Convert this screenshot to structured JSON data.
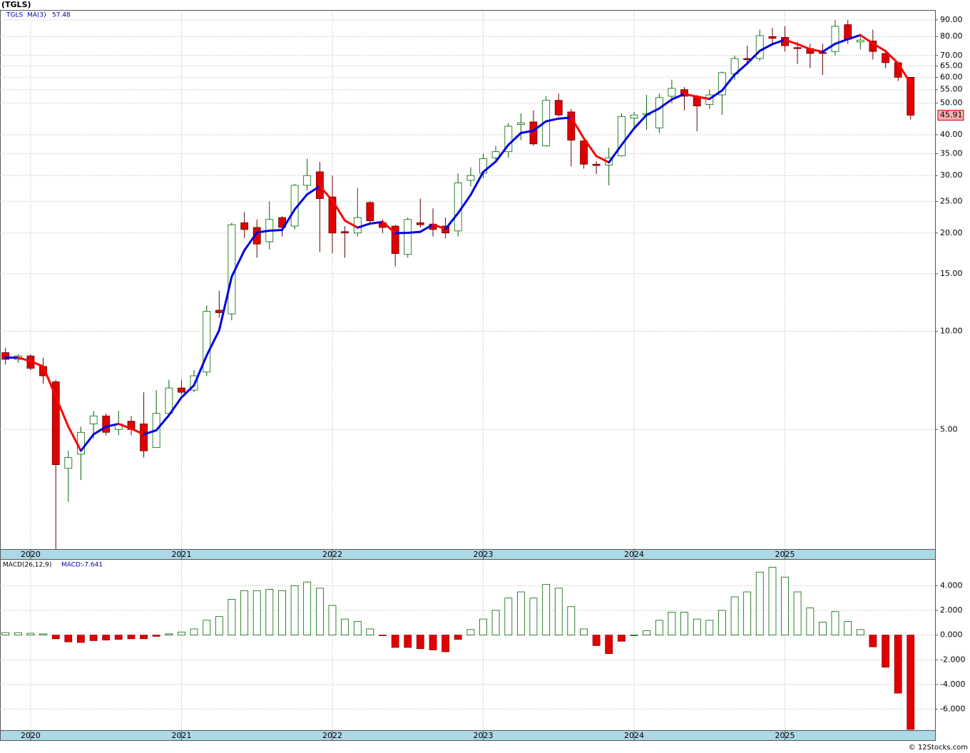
{
  "chart_data": [
    {
      "type": "candlestick",
      "title": "(TGLS)",
      "log_scale": true,
      "grid": true,
      "up_color": "#006400",
      "down_color": "#e00000",
      "x": [
        2019.833,
        2019.917,
        2020,
        2020.083,
        2020.167,
        2020.25,
        2020.333,
        2020.417,
        2020.5,
        2020.583,
        2020.667,
        2020.75,
        2020.833,
        2020.917,
        2021,
        2021.083,
        2021.167,
        2021.25,
        2021.333,
        2021.417,
        2021.5,
        2021.583,
        2021.667,
        2021.75,
        2021.833,
        2021.917,
        2022,
        2022.083,
        2022.167,
        2022.25,
        2022.333,
        2022.417,
        2022.5,
        2022.583,
        2022.667,
        2022.75,
        2022.833,
        2022.917,
        2023,
        2023.083,
        2023.167,
        2023.25,
        2023.333,
        2023.417,
        2023.5,
        2023.583,
        2023.667,
        2023.75,
        2023.833,
        2023.917,
        2024,
        2024.083,
        2024.167,
        2024.25,
        2024.333,
        2024.417,
        2024.5,
        2024.583,
        2024.667,
        2024.75,
        2024.833,
        2024.917,
        2025,
        2025.083,
        2025.167,
        2025.25,
        2025.333,
        2025.417,
        2025.5,
        2025.583,
        2025.667,
        2025.75,
        2025.833
      ],
      "series": [
        {
          "name": "TGLS",
          "open": [
            8.6,
            8.2,
            8.4,
            7.8,
            7.0,
            3.8,
            4.2,
            5.2,
            5.5,
            5.0,
            5.3,
            5.2,
            4.4,
            5.6,
            6.7,
            6.6,
            7.5,
            11.6,
            11.3,
            21.5,
            20.8,
            18.8,
            22.3,
            21.0,
            28.0,
            30.8,
            25.8,
            20.2,
            20.0,
            24.8,
            21.5,
            21.0,
            17.2,
            21.5,
            21.3,
            21.0,
            20.3,
            29.0,
            30.5,
            34.0,
            35.5,
            43.0,
            43.8,
            37.0,
            51.0,
            47.0,
            38.3,
            32.5,
            32.3,
            34.5,
            45.0,
            46.0,
            42.0,
            52.5,
            55.0,
            52.5,
            49.5,
            53.0,
            61.5,
            68.5,
            68.5,
            80.0,
            79.5,
            74.0,
            73.5,
            71.5,
            72.0,
            87.0,
            77.0,
            77.5,
            71.0,
            66.5,
            60.0
          ],
          "high": [
            8.9,
            8.5,
            8.5,
            8.3,
            7.1,
            4.3,
            5.1,
            5.7,
            5.6,
            5.7,
            5.5,
            6.5,
            6.6,
            7.1,
            7.1,
            7.6,
            12.0,
            13.3,
            21.5,
            23.2,
            22.0,
            25.0,
            22.5,
            28.3,
            33.8,
            33.0,
            30.0,
            21.0,
            27.5,
            25.0,
            22.0,
            21.2,
            22.3,
            25.5,
            23.8,
            22.3,
            30.5,
            31.8,
            35.0,
            37.0,
            43.5,
            46.5,
            47.5,
            52.5,
            53.5,
            48.0,
            38.5,
            33.2,
            36.5,
            46.5,
            47.0,
            53.0,
            53.5,
            59.0,
            56.0,
            53.0,
            55.0,
            62.5,
            70.0,
            75.0,
            84.0,
            85.0,
            86.0,
            77.0,
            76.0,
            76.0,
            90.0,
            90.0,
            80.0,
            84.0,
            72.0,
            67.0,
            60.0
          ],
          "low": [
            7.9,
            8.0,
            7.6,
            6.9,
            2.15,
            3.0,
            3.5,
            4.7,
            4.8,
            4.8,
            4.8,
            4.1,
            4.4,
            5.5,
            6.4,
            6.5,
            7.3,
            11.0,
            10.8,
            19.3,
            16.8,
            17.8,
            19.5,
            20.5,
            27.0,
            17.5,
            17.3,
            16.8,
            19.5,
            21.3,
            20.0,
            15.8,
            16.8,
            20.8,
            19.5,
            19.3,
            19.5,
            27.8,
            29.5,
            33.0,
            34.0,
            38.5,
            37.0,
            36.8,
            45.5,
            32.0,
            31.5,
            30.3,
            28.0,
            34.3,
            42.0,
            41.5,
            40.5,
            50.0,
            47.5,
            41.0,
            48.0,
            46.0,
            59.0,
            66.0,
            67.5,
            75.0,
            72.0,
            66.0,
            64.0,
            61.0,
            70.0,
            76.0,
            73.0,
            68.0,
            64.0,
            58.5,
            44.5
          ],
          "close": [
            8.2,
            8.4,
            7.7,
            7.3,
            3.9,
            4.1,
            4.9,
            5.5,
            4.9,
            5.2,
            5.0,
            4.3,
            5.6,
            6.7,
            6.5,
            7.3,
            11.5,
            11.4,
            21.2,
            20.5,
            18.5,
            22.0,
            20.8,
            28.0,
            30.0,
            25.5,
            20.0,
            20.0,
            22.3,
            21.8,
            20.8,
            17.3,
            22.0,
            21.2,
            20.5,
            20.0,
            28.5,
            30.0,
            33.8,
            35.5,
            42.5,
            43.5,
            37.5,
            51.0,
            46.0,
            38.5,
            32.5,
            32.2,
            34.0,
            45.5,
            46.0,
            46.5,
            52.0,
            55.5,
            52.5,
            49.0,
            53.0,
            62.0,
            68.5,
            68.0,
            80.5,
            79.0,
            75.0,
            73.5,
            71.0,
            71.0,
            86.0,
            78.5,
            78.0,
            72.0,
            66.52,
            60.0,
            45.91
          ],
          "value_labels": {
            "close_last": "45.91"
          }
        },
        {
          "name": "MA(3)",
          "up_color": "#0000e0",
          "down_color": "#ff0000",
          "values": [
            8.3,
            8.3,
            8.1,
            7.8,
            6.3,
            5.1,
            4.3,
            4.83,
            5.1,
            5.2,
            5.03,
            4.83,
            4.97,
            5.53,
            6.27,
            6.83,
            8.43,
            10.07,
            14.7,
            17.7,
            20.07,
            20.33,
            20.43,
            23.6,
            26.27,
            27.83,
            25.17,
            21.83,
            20.77,
            21.37,
            21.63,
            19.97,
            20.03,
            20.17,
            21.23,
            20.57,
            23.0,
            26.17,
            30.77,
            33.1,
            37.27,
            40.5,
            41.17,
            44.0,
            44.83,
            45.17,
            39.0,
            34.4,
            32.9,
            37.23,
            41.83,
            46.0,
            48.17,
            51.33,
            53.33,
            52.33,
            51.5,
            54.67,
            61.17,
            66.17,
            72.33,
            75.83,
            78.17,
            75.83,
            73.17,
            71.83,
            76.0,
            78.5,
            80.83,
            76.17,
            72.17,
            66.17,
            57.48
          ]
        }
      ],
      "xlim": [
        2019.797,
        2025.995
      ],
      "xticks": [
        2020,
        2021,
        2022,
        2023,
        2024,
        2025
      ],
      "ylim": [
        2.15,
        96
      ],
      "yticks": [
        {
          "value": 5,
          "label": "5.00"
        },
        {
          "value": 10,
          "label": "10.00"
        },
        {
          "value": 15,
          "label": "15.00"
        },
        {
          "value": 20,
          "label": "20.00"
        },
        {
          "value": 25,
          "label": "25.00"
        },
        {
          "value": 30,
          "label": "30.00"
        },
        {
          "value": 35,
          "label": "35.00"
        },
        {
          "value": 40,
          "label": "40.00"
        },
        {
          "value": 50,
          "label": "50.00"
        },
        {
          "value": 55,
          "label": "55.00"
        },
        {
          "value": 60,
          "label": "60.00"
        },
        {
          "value": 65,
          "label": "65.00"
        },
        {
          "value": 70,
          "label": "70.00"
        },
        {
          "value": 80,
          "label": "80.00"
        },
        {
          "value": 90,
          "label": "90.00"
        }
      ]
    },
    {
      "type": "histogram_macd",
      "title": "MACD(26,12,9)",
      "legend_label": "MACD:",
      "grid": true,
      "up_color": "#006400",
      "down_color": "#e00000",
      "x": [
        2019.833,
        2019.917,
        2020,
        2020.083,
        2020.167,
        2020.25,
        2020.333,
        2020.417,
        2020.5,
        2020.583,
        2020.667,
        2020.75,
        2020.833,
        2020.917,
        2021,
        2021.083,
        2021.167,
        2021.25,
        2021.333,
        2021.417,
        2021.5,
        2021.583,
        2021.667,
        2021.75,
        2021.833,
        2021.917,
        2022,
        2022.083,
        2022.167,
        2022.25,
        2022.333,
        2022.417,
        2022.5,
        2022.583,
        2022.667,
        2022.75,
        2022.833,
        2022.917,
        2023,
        2023.083,
        2023.167,
        2023.25,
        2023.333,
        2023.417,
        2023.5,
        2023.583,
        2023.667,
        2023.75,
        2023.833,
        2023.917,
        2024,
        2024.083,
        2024.167,
        2024.25,
        2024.333,
        2024.417,
        2024.5,
        2024.583,
        2024.667,
        2024.75,
        2024.833,
        2024.917,
        2025,
        2025.083,
        2025.167,
        2025.25,
        2025.333,
        2025.417,
        2025.5,
        2025.583,
        2025.667,
        2025.75,
        2025.833
      ],
      "values": [
        0.2,
        0.2,
        0.15,
        0.1,
        -0.3,
        -0.55,
        -0.6,
        -0.45,
        -0.4,
        -0.35,
        -0.3,
        -0.3,
        -0.1,
        0.1,
        0.25,
        0.5,
        1.2,
        1.5,
        2.9,
        3.6,
        3.6,
        3.7,
        3.6,
        4.0,
        4.3,
        3.8,
        2.4,
        1.3,
        1.1,
        0.5,
        -0.05,
        -1.0,
        -1.0,
        -1.1,
        -1.2,
        -1.35,
        -0.35,
        0.45,
        1.3,
        2.0,
        3.0,
        3.5,
        3.0,
        4.1,
        3.8,
        2.3,
        0.5,
        -0.85,
        -1.5,
        -0.5,
        0,
        0.35,
        1.2,
        1.85,
        1.85,
        1.3,
        1.2,
        2.0,
        3.1,
        3.5,
        5.1,
        5.5,
        4.7,
        3.5,
        2.2,
        1.05,
        1.9,
        1.1,
        0.45,
        -0.95,
        -2.6,
        -4.7,
        -7.641
      ],
      "xlim": [
        2019.797,
        2025.995
      ],
      "xticks": [
        2020,
        2021,
        2022,
        2023,
        2024,
        2025
      ],
      "ylim": [
        -7.7,
        6.1
      ],
      "yticks": [
        {
          "value": -6,
          "label": "-6.000"
        },
        {
          "value": -4,
          "label": "-4.000"
        },
        {
          "value": -2,
          "label": "-2.000"
        },
        {
          "value": 0,
          "label": "0.000"
        },
        {
          "value": 2,
          "label": "2.000"
        },
        {
          "value": 4,
          "label": "4.000"
        }
      ]
    }
  ],
  "footer": {
    "watermark": "© 12Stocks.com"
  }
}
